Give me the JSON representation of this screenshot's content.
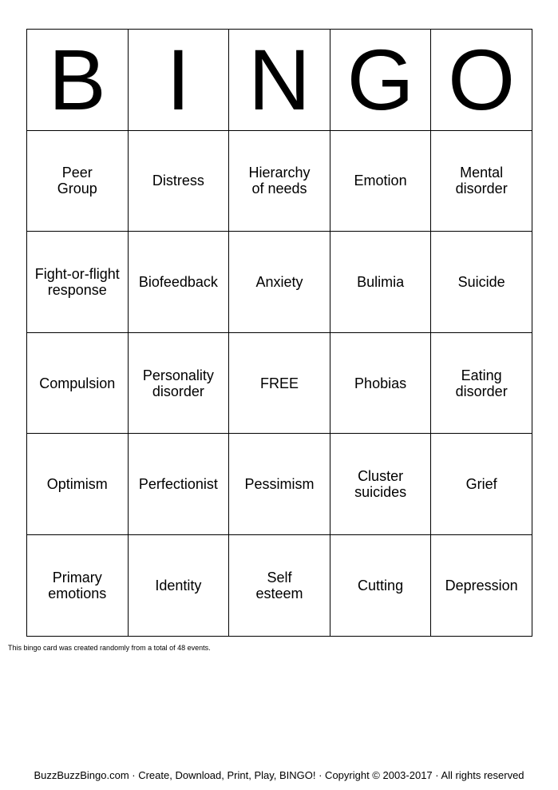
{
  "header": [
    "B",
    "I",
    "N",
    "G",
    "O"
  ],
  "rows": [
    [
      "Peer\nGroup",
      "Distress",
      "Hierarchy\nof needs",
      "Emotion",
      "Mental\ndisorder"
    ],
    [
      "Fight-or-flight\nresponse",
      "Biofeedback",
      "Anxiety",
      "Bulimia",
      "Suicide"
    ],
    [
      "Compulsion",
      "Personality\ndisorder",
      "FREE",
      "Phobias",
      "Eating\ndisorder"
    ],
    [
      "Optimism",
      "Perfectionist",
      "Pessimism",
      "Cluster\nsuicides",
      "Grief"
    ],
    [
      "Primary\nemotions",
      "Identity",
      "Self\nesteem",
      "Cutting",
      "Depression"
    ]
  ],
  "note": "This bingo card was created randomly from a total of 48 events.",
  "footer": "BuzzBuzzBingo.com · Create, Download, Print, Play, BINGO! · Copyright © 2003-2017 · All rights reserved"
}
